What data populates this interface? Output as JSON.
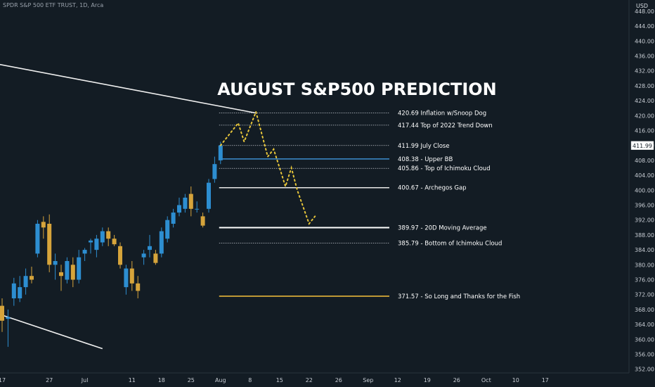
{
  "header": {
    "ticker": "SPDR S&P 500 ETF TRUST, 1D, Arca",
    "currency": "USD"
  },
  "chart_data": {
    "type": "candlestick",
    "title": "AUGUST S&P500 PREDICTION",
    "colors": {
      "background": "#131c24",
      "up": "#2d8ed1",
      "down": "#d6a43b",
      "axis_text": "#c7ccd3",
      "prediction_path": "#e6c53a",
      "trendline": "#f0f0f0"
    },
    "y_axis": {
      "range": [
        351,
        451
      ],
      "ticks": [
        "352.00",
        "356.00",
        "360.00",
        "364.00",
        "368.00",
        "372.00",
        "376.00",
        "380.00",
        "384.00",
        "388.00",
        "392.00",
        "396.00",
        "400.00",
        "404.00",
        "408.00",
        "412.00",
        "416.00",
        "420.00",
        "424.00",
        "428.00",
        "432.00",
        "436.00",
        "440.00",
        "444.00",
        "448.00"
      ],
      "last_price": "411.99"
    },
    "x_axis": {
      "labels": [
        {
          "t": 0,
          "text": "17"
        },
        {
          "t": 8,
          "text": "27"
        },
        {
          "t": 14,
          "text": "Jul"
        },
        {
          "t": 22,
          "text": "11"
        },
        {
          "t": 27,
          "text": "18"
        },
        {
          "t": 32,
          "text": "25"
        },
        {
          "t": 37,
          "text": "Aug"
        },
        {
          "t": 42,
          "text": "8"
        },
        {
          "t": 47,
          "text": "15"
        },
        {
          "t": 52,
          "text": "22"
        },
        {
          "t": 57,
          "text": "26"
        },
        {
          "t": 62,
          "text": "Sep"
        },
        {
          "t": 67,
          "text": "12"
        },
        {
          "t": 72,
          "text": "19"
        },
        {
          "t": 77,
          "text": "26"
        },
        {
          "t": 82,
          "text": "Oct"
        },
        {
          "t": 87,
          "text": "10"
        },
        {
          "t": 92,
          "text": "17"
        }
      ]
    },
    "candles": [
      {
        "t": 0,
        "o": 369.0,
        "h": 371.0,
        "l": 362.0,
        "c": 365.0
      },
      {
        "t": 1,
        "o": 365.5,
        "h": 368.0,
        "l": 358.0,
        "c": 366.0
      },
      {
        "t": 2,
        "o": 371.0,
        "h": 376.5,
        "l": 369.0,
        "c": 375.0
      },
      {
        "t": 3,
        "o": 371.0,
        "h": 377.0,
        "l": 370.0,
        "c": 374.0
      },
      {
        "t": 4,
        "o": 374.0,
        "h": 379.0,
        "l": 372.0,
        "c": 377.0
      },
      {
        "t": 5,
        "o": 377.0,
        "h": 379.5,
        "l": 375.0,
        "c": 376.0
      },
      {
        "t": 6,
        "o": 383.0,
        "h": 392.0,
        "l": 382.0,
        "c": 391.0
      },
      {
        "t": 7,
        "o": 391.5,
        "h": 393.0,
        "l": 387.0,
        "c": 390.0
      },
      {
        "t": 8,
        "o": 391.0,
        "h": 393.5,
        "l": 378.0,
        "c": 380.0
      },
      {
        "t": 9,
        "o": 380.0,
        "h": 383.0,
        "l": 376.0,
        "c": 381.0
      },
      {
        "t": 10,
        "o": 378.0,
        "h": 380.0,
        "l": 373.0,
        "c": 377.0
      },
      {
        "t": 11,
        "o": 376.0,
        "h": 382.0,
        "l": 375.0,
        "c": 381.0
      },
      {
        "t": 12,
        "o": 380.0,
        "h": 382.0,
        "l": 374.0,
        "c": 376.0
      },
      {
        "t": 13,
        "o": 376.0,
        "h": 384.0,
        "l": 375.0,
        "c": 382.0
      },
      {
        "t": 14,
        "o": 383.0,
        "h": 384.5,
        "l": 381.0,
        "c": 384.0
      },
      {
        "t": 15,
        "o": 386.0,
        "h": 387.0,
        "l": 383.0,
        "c": 386.5
      },
      {
        "t": 16,
        "o": 384.0,
        "h": 388.0,
        "l": 382.0,
        "c": 387.0
      },
      {
        "t": 17,
        "o": 386.0,
        "h": 390.0,
        "l": 385.0,
        "c": 389.0
      },
      {
        "t": 18,
        "o": 389.0,
        "h": 390.0,
        "l": 385.0,
        "c": 387.0
      },
      {
        "t": 19,
        "o": 387.0,
        "h": 388.0,
        "l": 385.0,
        "c": 385.5
      },
      {
        "t": 20,
        "o": 385.0,
        "h": 386.0,
        "l": 379.0,
        "c": 380.0
      },
      {
        "t": 21,
        "o": 374.0,
        "h": 380.0,
        "l": 372.0,
        "c": 379.0
      },
      {
        "t": 22,
        "o": 379.0,
        "h": 381.0,
        "l": 373.0,
        "c": 375.0
      },
      {
        "t": 23,
        "o": 375.0,
        "h": 377.0,
        "l": 371.0,
        "c": 373.0
      },
      {
        "t": 24,
        "o": 382.0,
        "h": 384.0,
        "l": 380.0,
        "c": 383.0
      },
      {
        "t": 25,
        "o": 384.0,
        "h": 388.0,
        "l": 382.0,
        "c": 385.0
      },
      {
        "t": 26,
        "o": 383.0,
        "h": 384.0,
        "l": 380.0,
        "c": 380.5
      },
      {
        "t": 27,
        "o": 383.0,
        "h": 390.0,
        "l": 382.0,
        "c": 389.0
      },
      {
        "t": 28,
        "o": 387.0,
        "h": 393.0,
        "l": 386.0,
        "c": 392.0
      },
      {
        "t": 29,
        "o": 391.0,
        "h": 395.0,
        "l": 390.0,
        "c": 394.0
      },
      {
        "t": 30,
        "o": 394.0,
        "h": 398.0,
        "l": 393.0,
        "c": 396.0
      },
      {
        "t": 31,
        "o": 395.0,
        "h": 399.0,
        "l": 394.0,
        "c": 398.0
      },
      {
        "t": 32,
        "o": 399.0,
        "h": 401.0,
        "l": 393.0,
        "c": 395.0
      },
      {
        "t": 33,
        "o": 395.0,
        "h": 397.0,
        "l": 394.0,
        "c": 395.0
      },
      {
        "t": 34,
        "o": 393.0,
        "h": 394.0,
        "l": 390.0,
        "c": 390.5
      },
      {
        "t": 35,
        "o": 395.0,
        "h": 403.0,
        "l": 394.0,
        "c": 402.0
      },
      {
        "t": 36,
        "o": 403.0,
        "h": 409.0,
        "l": 402.0,
        "c": 407.0
      },
      {
        "t": 37,
        "o": 408.0,
        "h": 413.0,
        "l": 407.0,
        "c": 412.0
      }
    ],
    "prediction_path": [
      {
        "t": 37,
        "v": 412.0
      },
      {
        "t": 40,
        "v": 418.0
      },
      {
        "t": 41,
        "v": 413.0
      },
      {
        "t": 43,
        "v": 421.0
      },
      {
        "t": 45,
        "v": 409.0
      },
      {
        "t": 46,
        "v": 411.0
      },
      {
        "t": 48,
        "v": 401.0
      },
      {
        "t": 49,
        "v": 406.0
      },
      {
        "t": 50,
        "v": 400.0
      },
      {
        "t": 52,
        "v": 391.0
      },
      {
        "t": 53,
        "v": 393.0
      }
    ],
    "trendlines": [
      {
        "t1": -8,
        "v1": 436.0,
        "t2": 43,
        "v2": 420.69
      },
      {
        "t1": 0,
        "v1": 366.5,
        "t2": 17,
        "v2": 357.5
      }
    ],
    "levels": [
      {
        "value": 420.69,
        "label": "420.69 Inflation w/Snoop Dog",
        "style": "dotted",
        "color": "#c7ccd3"
      },
      {
        "value": 417.44,
        "label": "417.44 Top of 2022 Trend Down",
        "style": "dotted",
        "color": "#c7ccd3"
      },
      {
        "value": 411.99,
        "label": "411.99 July Close",
        "style": "dotted",
        "color": "#c7ccd3"
      },
      {
        "value": 408.38,
        "label": "408.38 - Upper BB",
        "style": "solid",
        "color": "#3d8fd1"
      },
      {
        "value": 405.86,
        "label": "405.86 - Top of Ichimoku Cloud",
        "style": "dotted",
        "color": "#c7ccd3"
      },
      {
        "value": 400.67,
        "label": "400.67 - Archegos Gap",
        "style": "solid",
        "color": "#e8e8e8"
      },
      {
        "value": 389.97,
        "label": "389.97 - 20D Moving Average",
        "style": "solid-bold",
        "color": "#ffffff"
      },
      {
        "value": 385.79,
        "label": "385.79 - Bottom of Ichimoku Cloud",
        "style": "dotted",
        "color": "#c7ccd3"
      },
      {
        "value": 371.57,
        "label": "371.57 - So Long and Thanks for the Fish",
        "style": "solid",
        "color": "#e8b53a"
      }
    ]
  }
}
